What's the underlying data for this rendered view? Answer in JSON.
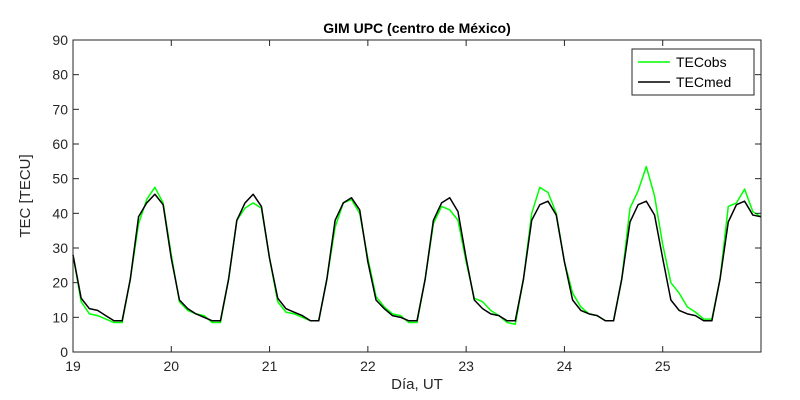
{
  "chart_data": {
    "type": "line",
    "title": "GIM UPC (centro de México)",
    "xlabel": "Día, UT",
    "ylabel": "TEC [TECU]",
    "xlim": [
      19,
      26
    ],
    "ylim": [
      0,
      90
    ],
    "xticks": [
      "19",
      "20",
      "21",
      "22",
      "23",
      "24",
      "25"
    ],
    "yticks": [
      "0",
      "10",
      "20",
      "30",
      "40",
      "50",
      "60",
      "70",
      "80",
      "90"
    ],
    "grid": false,
    "legend_position": "top-right",
    "x": [
      19.0,
      19.083,
      19.167,
      19.25,
      19.333,
      19.417,
      19.5,
      19.583,
      19.667,
      19.75,
      19.833,
      19.917,
      20.0,
      20.083,
      20.167,
      20.25,
      20.333,
      20.417,
      20.5,
      20.583,
      20.667,
      20.75,
      20.833,
      20.917,
      21.0,
      21.083,
      21.167,
      21.25,
      21.333,
      21.417,
      21.5,
      21.583,
      21.667,
      21.75,
      21.833,
      21.917,
      22.0,
      22.083,
      22.167,
      22.25,
      22.333,
      22.417,
      22.5,
      22.583,
      22.667,
      22.75,
      22.833,
      22.917,
      23.0,
      23.083,
      23.167,
      23.25,
      23.333,
      23.417,
      23.5,
      23.583,
      23.667,
      23.75,
      23.833,
      23.917,
      24.0,
      24.083,
      24.167,
      24.25,
      24.333,
      24.417,
      24.5,
      24.583,
      24.667,
      24.75,
      24.833,
      24.917,
      25.0,
      25.083,
      25.167,
      25.25,
      25.333,
      25.417,
      25.5,
      25.583,
      25.667,
      25.75,
      25.833,
      25.917,
      26.0
    ],
    "series": [
      {
        "name": "TECobs",
        "color": "#00ff00",
        "values": [
          28,
          14.5,
          11,
          10.5,
          9.5,
          8.5,
          8.5,
          21,
          37,
          44,
          47.5,
          43,
          28,
          14.5,
          12,
          11,
          10.5,
          8.5,
          8.5,
          21,
          38,
          41.5,
          43,
          41.5,
          27,
          14.5,
          11.5,
          11,
          10,
          9,
          9,
          21,
          36,
          43,
          44,
          40,
          27,
          16,
          13,
          11,
          10.5,
          8.5,
          8.5,
          21,
          37,
          42,
          41,
          38,
          26,
          15.5,
          14.5,
          12,
          10.5,
          8.5,
          8,
          21,
          40,
          47.5,
          46,
          40,
          26,
          17,
          13,
          11,
          10.5,
          9,
          9,
          21,
          41.5,
          46.5,
          53.5,
          45,
          31,
          20,
          17,
          13,
          11.5,
          9.5,
          9.5,
          21,
          42,
          43,
          47,
          40.5,
          39
        ]
      },
      {
        "name": "TECmed",
        "color": "#000000",
        "values": [
          28,
          15.5,
          12.5,
          12,
          10.5,
          9,
          9,
          21,
          39,
          43,
          45.5,
          42.5,
          27,
          15,
          12.5,
          11,
          10,
          9,
          9,
          21,
          38,
          43,
          45.5,
          42,
          27,
          15.5,
          12.5,
          11.5,
          10.5,
          9,
          9,
          21,
          38,
          43,
          44.5,
          41,
          26,
          15,
          12.5,
          10.5,
          10,
          9,
          9,
          21,
          38,
          43,
          44.5,
          40.5,
          27,
          15,
          12.5,
          11,
          10.5,
          9,
          9,
          21,
          38,
          42.5,
          43.5,
          39.5,
          26,
          15,
          12,
          11,
          10.5,
          9,
          9,
          21,
          37.5,
          42.5,
          43.5,
          39.5,
          27,
          15,
          12,
          11,
          10.5,
          9,
          9,
          21,
          37.5,
          42.5,
          43.5,
          39.5,
          39
        ]
      }
    ]
  }
}
